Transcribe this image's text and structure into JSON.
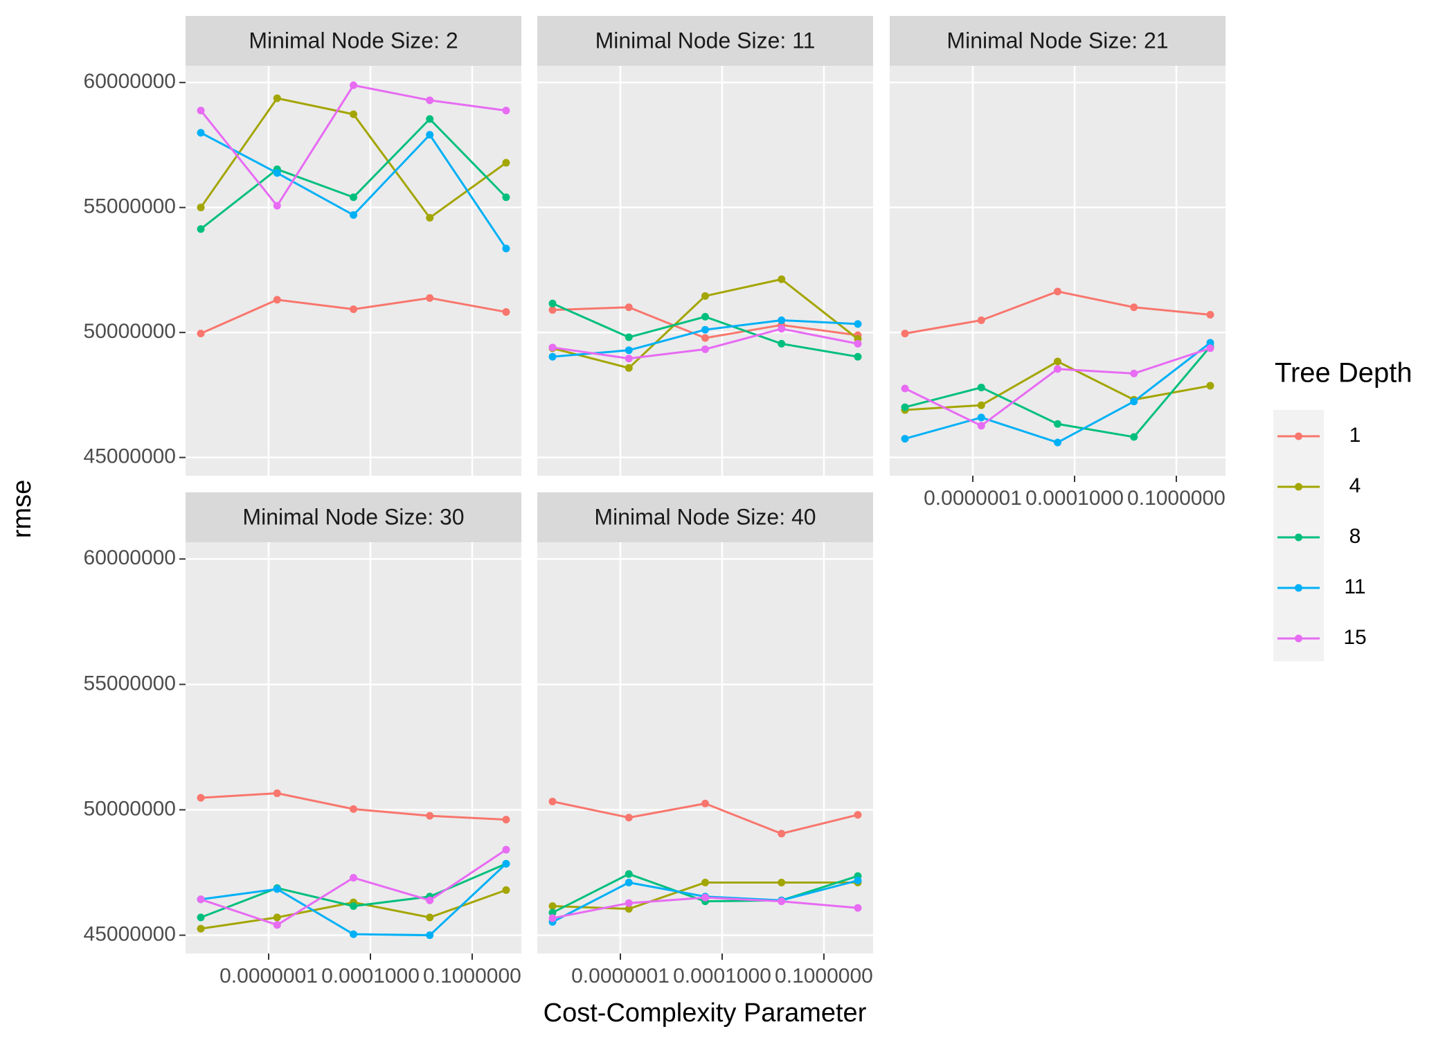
{
  "chart_data": [
    {
      "type": "line",
      "title": "Minimal Node Size: 2",
      "x": [
        1e-09,
        1.778e-07,
        3.162e-05,
        0.005623,
        1
      ],
      "xlog": true,
      "xlim": [
        3.55e-10,
        2.818
      ],
      "xticks": [
        {
          "value": 1e-07,
          "label": "0.0000001"
        },
        {
          "value": 0.0001,
          "label": "0.0001000"
        },
        {
          "value": 0.1,
          "label": "0.1000000"
        }
      ],
      "ylim": [
        44270000,
        60670000
      ],
      "yticks": [
        45000000,
        50000000,
        55000000,
        60000000
      ],
      "grid": true,
      "series": [
        {
          "name": "1",
          "color": "#F8766D",
          "values": [
            49960000,
            51310000,
            50930000,
            51380000,
            50820000
          ]
        },
        {
          "name": "4",
          "color": "#A3A500",
          "values": [
            55000000,
            59370000,
            58730000,
            54590000,
            56790000
          ]
        },
        {
          "name": "8",
          "color": "#00BF7D",
          "values": [
            54140000,
            56530000,
            55410000,
            58540000,
            55410000
          ]
        },
        {
          "name": "11",
          "color": "#00B0F6",
          "values": [
            57990000,
            56380000,
            54700000,
            57910000,
            53360000
          ]
        },
        {
          "name": "15",
          "color": "#E76BF3",
          "values": [
            58880000,
            55070000,
            59890000,
            59290000,
            58880000
          ]
        }
      ]
    },
    {
      "type": "line",
      "title": "Minimal Node Size: 11",
      "x": [
        1e-09,
        1.778e-07,
        3.162e-05,
        0.005623,
        1
      ],
      "xlog": true,
      "xlim": [
        3.55e-10,
        2.818
      ],
      "xticks": [
        {
          "value": 1e-07,
          "label": "0.0000001"
        },
        {
          "value": 0.0001,
          "label": "0.0001000"
        },
        {
          "value": 0.1,
          "label": "0.1000000"
        }
      ],
      "ylim": [
        44270000,
        60670000
      ],
      "yticks": [
        45000000,
        50000000,
        55000000,
        60000000
      ],
      "grid": true,
      "series": [
        {
          "name": "1",
          "color": "#F8766D",
          "values": [
            50900000,
            51010000,
            49780000,
            50300000,
            49890000
          ]
        },
        {
          "name": "4",
          "color": "#A3A500",
          "values": [
            49370000,
            48580000,
            51460000,
            52130000,
            49740000
          ]
        },
        {
          "name": "8",
          "color": "#00BF7D",
          "values": [
            51160000,
            49810000,
            50630000,
            49550000,
            49030000
          ]
        },
        {
          "name": "11",
          "color": "#00B0F6",
          "values": [
            49030000,
            49290000,
            50110000,
            50490000,
            50340000
          ]
        },
        {
          "name": "15",
          "color": "#E76BF3",
          "values": [
            49400000,
            48960000,
            49330000,
            50150000,
            49550000
          ]
        }
      ]
    },
    {
      "type": "line",
      "title": "Minimal Node Size: 21",
      "x": [
        1e-09,
        1.778e-07,
        3.162e-05,
        0.005623,
        1
      ],
      "xlog": true,
      "xlim": [
        3.55e-10,
        2.818
      ],
      "xticks": [
        {
          "value": 1e-07,
          "label": "0.0000001"
        },
        {
          "value": 0.0001,
          "label": "0.0001000"
        },
        {
          "value": 0.1,
          "label": "0.1000000"
        }
      ],
      "ylim": [
        44270000,
        60670000
      ],
      "yticks": [
        45000000,
        50000000,
        55000000,
        60000000
      ],
      "grid": true,
      "series": [
        {
          "name": "1",
          "color": "#F8766D",
          "values": [
            49960000,
            50490000,
            51640000,
            51010000,
            50710000
          ]
        },
        {
          "name": "4",
          "color": "#A3A500",
          "values": [
            46900000,
            47090000,
            48840000,
            47310000,
            47870000
          ]
        },
        {
          "name": "8",
          "color": "#00BF7D",
          "values": [
            47010000,
            47800000,
            46340000,
            45820000,
            49440000
          ]
        },
        {
          "name": "11",
          "color": "#00B0F6",
          "values": [
            45750000,
            46600000,
            45600000,
            47240000,
            49590000
          ]
        },
        {
          "name": "15",
          "color": "#E76BF3",
          "values": [
            47760000,
            46270000,
            48540000,
            48360000,
            49370000
          ]
        }
      ]
    },
    {
      "type": "line",
      "title": "Minimal Node Size: 30",
      "x": [
        1e-09,
        1.778e-07,
        3.162e-05,
        0.005623,
        1
      ],
      "xlog": true,
      "xlim": [
        3.55e-10,
        2.818
      ],
      "xticks": [
        {
          "value": 1e-07,
          "label": "0.0000001"
        },
        {
          "value": 0.0001,
          "label": "0.0001000"
        },
        {
          "value": 0.1,
          "label": "0.1000000"
        }
      ],
      "ylim": [
        44270000,
        60670000
      ],
      "yticks": [
        45000000,
        50000000,
        55000000,
        60000000
      ],
      "grid": true,
      "series": [
        {
          "name": "1",
          "color": "#F8766D",
          "values": [
            50480000,
            50660000,
            50030000,
            49760000,
            49610000
          ]
        },
        {
          "name": "4",
          "color": "#A3A500",
          "values": [
            45260000,
            45710000,
            46310000,
            45710000,
            46800000
          ]
        },
        {
          "name": "8",
          "color": "#00BF7D",
          "values": [
            45710000,
            46880000,
            46160000,
            46540000,
            47850000
          ]
        },
        {
          "name": "11",
          "color": "#00B0F6",
          "values": [
            46430000,
            46840000,
            45040000,
            45000000,
            47850000
          ]
        },
        {
          "name": "15",
          "color": "#E76BF3",
          "values": [
            46430000,
            45410000,
            47290000,
            46390000,
            48410000
          ]
        }
      ]
    },
    {
      "type": "line",
      "title": "Minimal Node Size: 40",
      "x": [
        1e-09,
        1.778e-07,
        3.162e-05,
        0.005623,
        1
      ],
      "xlog": true,
      "xlim": [
        3.55e-10,
        2.818
      ],
      "xticks": [
        {
          "value": 1e-07,
          "label": "0.0000001"
        },
        {
          "value": 0.0001,
          "label": "0.0001000"
        },
        {
          "value": 0.1,
          "label": "0.1000000"
        }
      ],
      "ylim": [
        44270000,
        60670000
      ],
      "yticks": [
        45000000,
        50000000,
        55000000,
        60000000
      ],
      "grid": true,
      "series": [
        {
          "name": "1",
          "color": "#F8766D",
          "values": [
            50330000,
            49690000,
            50250000,
            49050000,
            49800000
          ]
        },
        {
          "name": "4",
          "color": "#A3A500",
          "values": [
            46160000,
            46050000,
            47100000,
            47100000,
            47100000
          ]
        },
        {
          "name": "8",
          "color": "#00BF7D",
          "values": [
            45900000,
            47440000,
            46350000,
            46390000,
            47360000
          ]
        },
        {
          "name": "11",
          "color": "#00B0F6",
          "values": [
            45530000,
            47100000,
            46540000,
            46390000,
            47180000
          ]
        },
        {
          "name": "15",
          "color": "#E76BF3",
          "values": [
            45680000,
            46280000,
            46500000,
            46350000,
            46090000
          ]
        }
      ]
    }
  ],
  "x_label": "Cost-Complexity Parameter",
  "y_label": "rmse",
  "legend_title": "Tree Depth"
}
